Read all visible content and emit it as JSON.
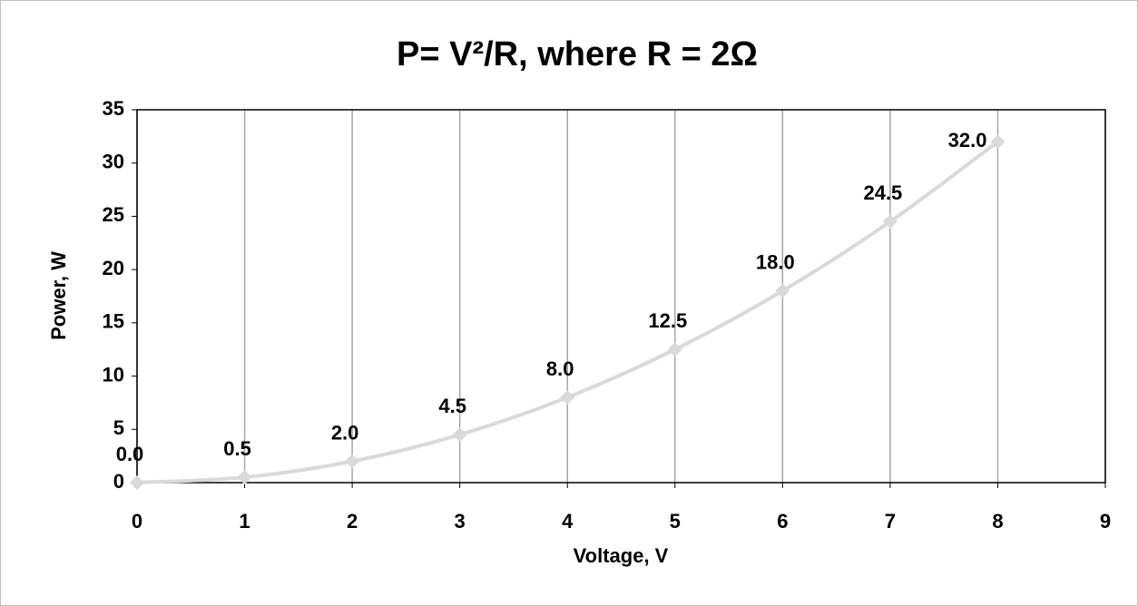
{
  "chart_data": {
    "type": "scatter",
    "title": "P= V²/R, where R = 2Ω",
    "x_label": "Voltage, V",
    "y_label": "Power, W",
    "x": [
      0,
      1,
      2,
      3,
      4,
      5,
      6,
      7,
      8
    ],
    "series": [
      {
        "name": "Power",
        "color": "#d9d9d9",
        "values": [
          0,
          0.5,
          2,
          4.5,
          8,
          12.5,
          18,
          24.5,
          32
        ],
        "value_labels": [
          "0.0",
          "0.5",
          "2.0",
          "4.5",
          "8.0",
          "12.5",
          "18.0",
          "24.5",
          "32.0"
        ]
      }
    ],
    "xlim": [
      0,
      9
    ],
    "xticks": [
      0,
      1,
      2,
      3,
      4,
      5,
      6,
      7,
      8,
      9
    ],
    "ylim": [
      0,
      35
    ],
    "yticks": [
      0,
      5,
      10,
      15,
      20,
      25,
      30,
      35
    ],
    "grid": "x",
    "smooth": true
  }
}
